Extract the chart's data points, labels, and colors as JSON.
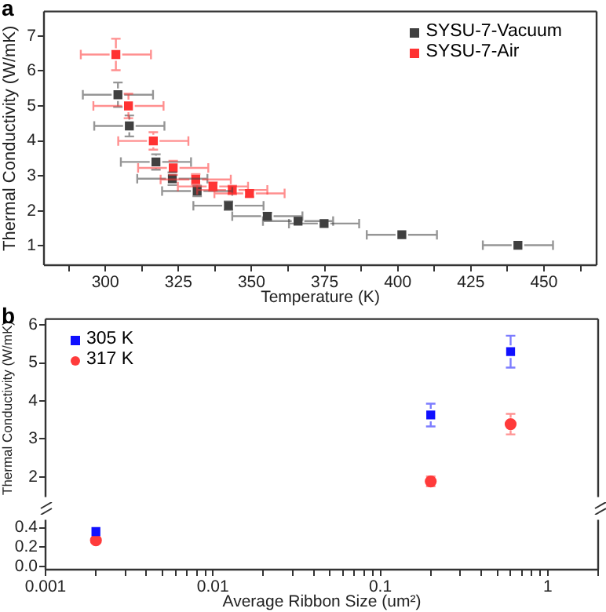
{
  "chart_data": [
    {
      "type": "scatter",
      "title": "a",
      "xlabel": "Temperature (K)",
      "ylabel": "Thermal Conductivity (W/mK)",
      "xlim": [
        279,
        468
      ],
      "xticks": [
        {
          "value": 287.5,
          "label": null
        },
        300,
        {
          "value": 312.5,
          "label": null
        },
        325,
        {
          "value": 337.5,
          "label": null
        },
        350,
        {
          "value": 362.5,
          "label": null
        },
        375,
        {
          "value": 387.5,
          "label": null
        },
        400,
        {
          "value": 412.5,
          "label": null
        },
        425,
        {
          "value": 437.5,
          "label": null
        },
        450,
        {
          "value": 462.5,
          "label": null
        }
      ],
      "ylim": [
        0.45,
        7.7
      ],
      "yticks": [
        1,
        2,
        3,
        4,
        5,
        6,
        7
      ],
      "grid": false,
      "legend": "top right",
      "marker": "square",
      "series": [
        {
          "name": "SYSU-7-Vacuum",
          "color": "#404040",
          "x": [
            304.3,
            308.2,
            317.3,
            322.9,
            331.4,
            342.1,
            355.4,
            365.9,
            374.8,
            401.4,
            441.1
          ],
          "values": [
            5.32,
            4.43,
            3.4,
            2.92,
            2.57,
            2.15,
            1.85,
            1.71,
            1.64,
            1.32,
            1.02
          ],
          "errors": [
            0.35,
            0.3,
            0.22,
            0.18,
            0.15,
            0.12,
            0.1,
            null,
            null,
            null,
            null
          ],
          "xerrors": [
            12,
            12,
            12,
            12,
            12,
            12,
            12,
            12,
            12,
            12,
            12
          ]
        },
        {
          "name": "SYSU-7-Air",
          "color": "#ff3333",
          "x": [
            303.6,
            307.9,
            316.4,
            323.2,
            330.9,
            336.8,
            343.4,
            349.3
          ],
          "values": [
            6.47,
            5.0,
            4.0,
            3.23,
            2.9,
            2.7,
            2.6,
            2.5
          ],
          "errors": [
            0.45,
            0.35,
            0.25,
            0.2,
            0.15,
            0.12,
            0.12,
            0.1
          ],
          "xerrors": [
            12,
            12,
            12,
            12,
            12,
            12,
            12,
            12
          ]
        }
      ]
    },
    {
      "type": "scatter",
      "title": "b",
      "ylabel": "Thermal Conductivity (W/mK)",
      "x": [
        0.2,
        0.6
      ],
      "xlim": [
        0.001,
        2
      ],
      "log": "x",
      "xticks": [
        0.001,
        0.01,
        0.1,
        1
      ],
      "ylim": [
        1.47,
        6.16
      ],
      "yticks": [
        2,
        3,
        4,
        5,
        6
      ],
      "tick_labels": "y",
      "grid": false,
      "legend": "top left",
      "series": [
        {
          "name": "305 K",
          "color": "#1010ff",
          "marker": "square",
          "values": [
            3.63,
            5.3
          ],
          "errors": [
            0.3,
            0.42
          ]
        },
        {
          "name": "317 K",
          "color": "#ff3b3b",
          "marker": "circle",
          "values": [
            1.88,
            3.39
          ],
          "errors": [
            0.13,
            0.27
          ]
        }
      ]
    },
    {
      "type": "scatter",
      "xlabel": "Average Ribbon Size (um²)",
      "x": [
        0.002
      ],
      "xlim": [
        0.001,
        2
      ],
      "log": "x",
      "xticks": [
        0.001,
        {
          "value": 0.002,
          "label": null
        },
        {
          "value": 0.003,
          "label": null
        },
        {
          "value": 0.004,
          "label": null
        },
        {
          "value": 0.005,
          "label": null
        },
        {
          "value": 0.006,
          "label": null
        },
        {
          "value": 0.007,
          "label": null
        },
        {
          "value": 0.008,
          "label": null
        },
        {
          "value": 0.009,
          "label": null
        },
        0.01,
        {
          "value": 0.02,
          "label": null
        },
        {
          "value": 0.03,
          "label": null
        },
        {
          "value": 0.04,
          "label": null
        },
        {
          "value": 0.05,
          "label": null
        },
        {
          "value": 0.06,
          "label": null
        },
        {
          "value": 0.07,
          "label": null
        },
        {
          "value": 0.08,
          "label": null
        },
        {
          "value": 0.09,
          "label": null
        },
        0.1,
        {
          "value": 0.2,
          "label": null
        },
        {
          "value": 0.3,
          "label": null
        },
        {
          "value": 0.4,
          "label": null
        },
        {
          "value": 0.5,
          "label": null
        },
        {
          "value": 0.6,
          "label": null
        },
        {
          "value": 0.7,
          "label": null
        },
        {
          "value": 0.8,
          "label": null
        },
        {
          "value": 0.9,
          "label": null
        },
        1,
        {
          "value": 2,
          "label": null
        }
      ],
      "ylim": [
        -0.03,
        0.48
      ],
      "yticks": [
        {
          "value": 0,
          "label": "0.0"
        },
        {
          "value": 0.2,
          "label": "0.2"
        },
        {
          "value": 0.4,
          "label": "0.4"
        }
      ],
      "grid": false,
      "series": [
        {
          "color": "#1010ff",
          "marker": "square",
          "values": [
            0.36
          ]
        },
        {
          "color": "#ff3b3b",
          "marker": "circle",
          "values": [
            0.27
          ]
        }
      ]
    }
  ]
}
